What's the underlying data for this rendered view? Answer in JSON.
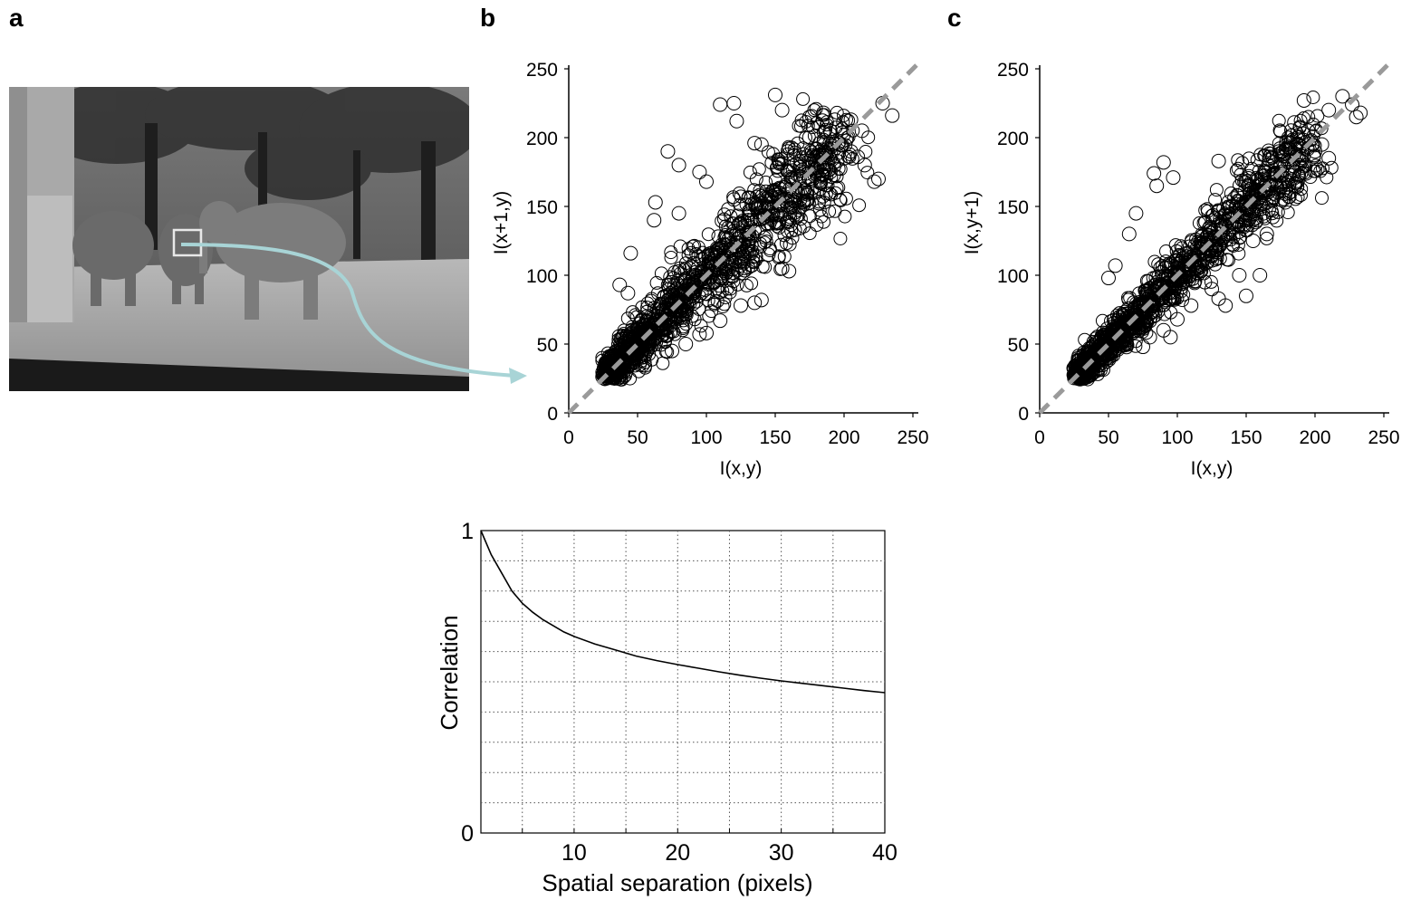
{
  "panels": {
    "a": "a",
    "b": "b",
    "c": "c"
  },
  "colors": {
    "marker": "#000000",
    "diagonal": "#9a9a9a",
    "arrow": "#a8d4d6",
    "grid": "#555555"
  },
  "chart_data": [
    {
      "type": "scatter",
      "panel": "b",
      "xlabel": "I(x,y)",
      "ylabel": "I(x+1,y)",
      "xlim": [
        0,
        250
      ],
      "ylim": [
        0,
        250
      ],
      "xticks": [
        0,
        50,
        100,
        150,
        200,
        250
      ],
      "yticks": [
        0,
        50,
        100,
        150,
        200,
        250
      ],
      "marker": "open-circle",
      "reference_line": "y = x (dashed)",
      "points": [
        [
          72,
          190
        ],
        [
          80,
          180
        ],
        [
          95,
          175
        ],
        [
          110,
          224
        ],
        [
          120,
          225
        ],
        [
          122,
          212
        ],
        [
          135,
          196
        ],
        [
          140,
          195
        ],
        [
          150,
          231
        ],
        [
          155,
          220
        ],
        [
          175,
          215
        ],
        [
          185,
          218
        ],
        [
          190,
          205
        ],
        [
          205,
          213
        ],
        [
          213,
          205
        ],
        [
          228,
          225
        ],
        [
          235,
          216
        ],
        [
          225,
          170
        ],
        [
          222,
          168
        ],
        [
          63,
          153
        ],
        [
          62,
          140
        ],
        [
          45,
          116
        ],
        [
          37,
          93
        ],
        [
          43,
          87
        ],
        [
          80,
          145
        ],
        [
          100,
          168
        ],
        [
          120,
          155
        ],
        [
          145,
          115
        ],
        [
          155,
          105
        ],
        [
          160,
          103
        ],
        [
          140,
          82
        ],
        [
          135,
          80
        ],
        [
          125,
          78
        ],
        [
          110,
          67
        ],
        [
          100,
          58
        ],
        [
          95,
          57
        ],
        [
          75,
          45
        ],
        [
          85,
          50
        ],
        [
          160,
          175
        ],
        [
          165,
          170
        ],
        [
          170,
          160
        ],
        [
          175,
          170
        ],
        [
          180,
          178
        ],
        [
          185,
          173
        ],
        [
          190,
          175
        ],
        [
          195,
          183
        ],
        [
          200,
          185
        ],
        [
          205,
          190
        ],
        [
          210,
          186
        ],
        [
          215,
          180
        ],
        [
          150,
          160
        ],
        [
          140,
          150
        ],
        [
          130,
          140
        ]
      ]
    },
    {
      "type": "scatter",
      "panel": "c",
      "xlabel": "I(x,y)",
      "ylabel": "I(x,y+1)",
      "xlim": [
        0,
        250
      ],
      "ylim": [
        0,
        250
      ],
      "xticks": [
        0,
        50,
        100,
        150,
        200,
        250
      ],
      "yticks": [
        0,
        50,
        100,
        150,
        200,
        250
      ],
      "marker": "open-circle",
      "reference_line": "y = x (dashed)",
      "points": [
        [
          83,
          174
        ],
        [
          85,
          165
        ],
        [
          97,
          171
        ],
        [
          90,
          182
        ],
        [
          130,
          183
        ],
        [
          185,
          211
        ],
        [
          192,
          227
        ],
        [
          210,
          220
        ],
        [
          220,
          230
        ],
        [
          227,
          224
        ],
        [
          230,
          215
        ],
        [
          233,
          218
        ],
        [
          195,
          205
        ],
        [
          205,
          195
        ],
        [
          210,
          185
        ],
        [
          200,
          190
        ],
        [
          55,
          107
        ],
        [
          50,
          98
        ],
        [
          65,
          130
        ],
        [
          70,
          145
        ],
        [
          115,
          105
        ],
        [
          120,
          95
        ],
        [
          125,
          90
        ],
        [
          130,
          83
        ],
        [
          135,
          78
        ],
        [
          145,
          100
        ],
        [
          150,
          85
        ],
        [
          160,
          100
        ],
        [
          165,
          130
        ],
        [
          155,
          125
        ],
        [
          90,
          60
        ],
        [
          80,
          55
        ],
        [
          100,
          68
        ],
        [
          110,
          78
        ],
        [
          75,
          48
        ],
        [
          95,
          55
        ],
        [
          170,
          170
        ],
        [
          175,
          180
        ],
        [
          180,
          175
        ],
        [
          160,
          165
        ],
        [
          150,
          150
        ],
        [
          140,
          145
        ]
      ]
    },
    {
      "type": "line",
      "panel": "bottom",
      "xlabel": "Spatial separation (pixels)",
      "ylabel": "Correlation",
      "xlim": [
        1,
        40
      ],
      "ylim": [
        0,
        1
      ],
      "xticks": [
        10,
        20,
        30,
        40
      ],
      "yticks": [
        0,
        1
      ],
      "xtick_labels": [
        "10",
        "20",
        "30",
        "40"
      ],
      "ytick_labels": [
        "0",
        "1"
      ],
      "grid": true,
      "x": [
        1,
        2,
        3,
        4,
        5,
        6,
        7,
        8,
        9,
        10,
        12,
        14,
        16,
        18,
        20,
        22,
        24,
        26,
        28,
        30,
        32,
        34,
        36,
        38,
        40
      ],
      "y": [
        1.0,
        0.92,
        0.86,
        0.8,
        0.76,
        0.73,
        0.705,
        0.685,
        0.665,
        0.65,
        0.625,
        0.605,
        0.585,
        0.57,
        0.557,
        0.545,
        0.533,
        0.522,
        0.512,
        0.503,
        0.495,
        0.487,
        0.479,
        0.471,
        0.464
      ]
    }
  ]
}
